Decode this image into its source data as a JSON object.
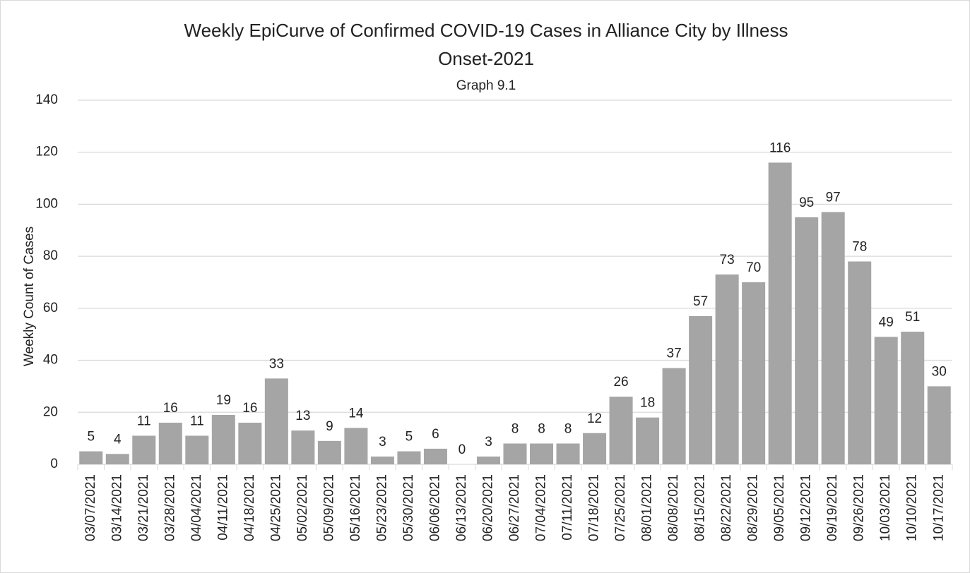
{
  "chart_data": {
    "type": "bar",
    "title": [
      "Weekly EpiCurve of Confirmed COVID-19 Cases in Alliance City by Illness",
      "Onset-2021"
    ],
    "subtitle": "Graph 9.1",
    "y_label": "Weekly Count of Cases",
    "categories": [
      "03/07/2021",
      "03/14/2021",
      "03/21/2021",
      "03/28/2021",
      "04/04/2021",
      "04/11/2021",
      "04/18/2021",
      "04/25/2021",
      "05/02/2021",
      "05/09/2021",
      "05/16/2021",
      "05/23/2021",
      "05/30/2021",
      "06/06/2021",
      "06/13/2021",
      "06/20/2021",
      "06/27/2021",
      "07/04/2021",
      "07/11/2021",
      "07/18/2021",
      "07/25/2021",
      "08/01/2021",
      "08/08/2021",
      "08/15/2021",
      "08/22/2021",
      "08/29/2021",
      "09/05/2021",
      "09/12/2021",
      "09/19/2021",
      "09/26/2021",
      "10/03/2021",
      "10/10/2021",
      "10/17/2021"
    ],
    "values": [
      5,
      4,
      11,
      16,
      11,
      19,
      16,
      33,
      13,
      9,
      14,
      3,
      5,
      6,
      0,
      3,
      8,
      8,
      8,
      12,
      26,
      18,
      37,
      57,
      73,
      70,
      116,
      95,
      97,
      78,
      49,
      51,
      30
    ],
    "color": "#a5a5a5",
    "ylim": [
      0,
      140
    ],
    "yticks": [
      0,
      20,
      40,
      60,
      80,
      100,
      120,
      140
    ],
    "grid": true
  }
}
